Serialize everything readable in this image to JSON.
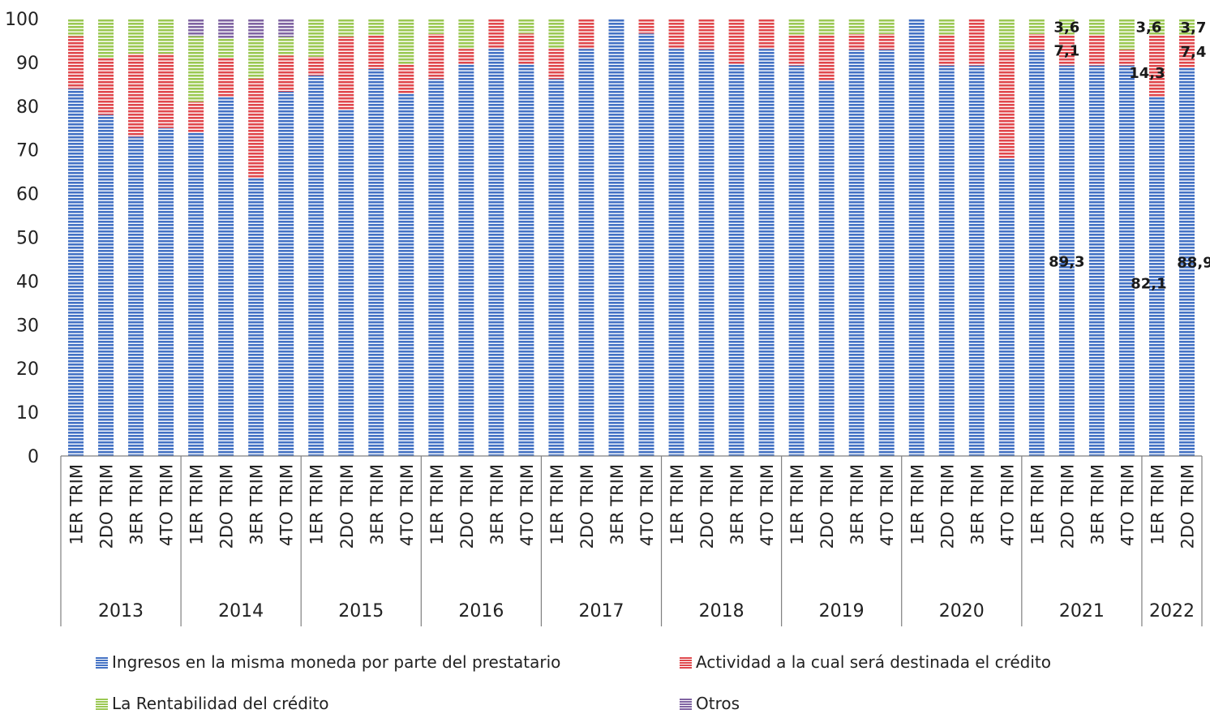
{
  "chart_data": {
    "type": "bar",
    "stacked": true,
    "ylim": [
      0,
      100
    ],
    "yticks": [
      0,
      10,
      20,
      30,
      40,
      50,
      60,
      70,
      80,
      90,
      100
    ],
    "grid": false,
    "legend_position": "bottom",
    "years": [
      {
        "label": "2013",
        "count": 4
      },
      {
        "label": "2014",
        "count": 4
      },
      {
        "label": "2015",
        "count": 4
      },
      {
        "label": "2016",
        "count": 4
      },
      {
        "label": "2017",
        "count": 4
      },
      {
        "label": "2018",
        "count": 4
      },
      {
        "label": "2019",
        "count": 4
      },
      {
        "label": "2020",
        "count": 4
      },
      {
        "label": "2021",
        "count": 4
      },
      {
        "label": "2022",
        "count": 2
      }
    ],
    "categories": [
      "1ER TRIM",
      "2DO TRIM",
      "3ER TRIM",
      "4TO TRIM",
      "1ER TRIM",
      "2DO TRIM",
      "3ER TRIM",
      "4TO TRIM",
      "1ER TRIM",
      "2DO TRIM",
      "3ER TRIM",
      "4TO TRIM",
      "1ER TRIM",
      "2DO TRIM",
      "3ER TRIM",
      "4TO TRIM",
      "1ER TRIM",
      "2DO TRIM",
      "3ER TRIM",
      "4TO TRIM",
      "1ER TRIM",
      "2DO TRIM",
      "3ER TRIM",
      "4TO TRIM",
      "1ER TRIM",
      "2DO TRIM",
      "3ER TRIM",
      "4TO TRIM",
      "1ER TRIM",
      "2DO TRIM",
      "3ER TRIM",
      "4TO TRIM",
      "1ER TRIM",
      "2DO TRIM",
      "3ER TRIM",
      "4TO TRIM",
      "1ER TRIM",
      "2DO TRIM"
    ],
    "series": [
      {
        "name": "Ingresos en la misma moneda por parte del prestatario",
        "color": "#4472C4",
        "values": [
          84.0,
          78.0,
          73.0,
          75.0,
          74.0,
          82.0,
          63.6,
          83.3,
          87.0,
          79.2,
          88.5,
          82.8,
          86.2,
          89.7,
          93.1,
          89.7,
          86.2,
          93.1,
          100.0,
          96.6,
          93.1,
          92.9,
          89.7,
          93.1,
          89.3,
          85.7,
          92.9,
          92.9,
          100.0,
          89.3,
          89.3,
          67.9,
          92.9,
          89.3,
          89.3,
          89.3,
          82.1,
          88.9
        ]
      },
      {
        "name": "Actividad a la cual será destinada el crédito",
        "color": "#E0484D",
        "values": [
          12.0,
          13.0,
          19.0,
          17.0,
          7.0,
          9.0,
          22.7,
          8.3,
          4.3,
          16.7,
          7.7,
          6.9,
          10.3,
          3.4,
          6.9,
          6.9,
          6.9,
          6.9,
          0.0,
          3.4,
          6.9,
          7.1,
          10.3,
          6.9,
          7.1,
          10.7,
          3.6,
          3.6,
          0.0,
          7.1,
          10.7,
          25.0,
          3.6,
          7.1,
          7.1,
          3.6,
          14.3,
          7.4
        ]
      },
      {
        "name": "La Rentabilidad del crédito",
        "color": "#9BC853",
        "values": [
          4.0,
          9.0,
          8.0,
          8.0,
          15.0,
          4.5,
          9.1,
          4.2,
          8.7,
          4.1,
          3.8,
          10.3,
          3.5,
          6.9,
          0.0,
          3.4,
          6.9,
          0.0,
          0.0,
          0.0,
          0.0,
          0.0,
          0.0,
          0.0,
          3.6,
          3.6,
          3.5,
          3.5,
          0.0,
          3.6,
          0.0,
          7.1,
          3.5,
          3.6,
          3.6,
          7.1,
          3.6,
          3.7
        ]
      },
      {
        "name": "Otros",
        "color": "#8064A2",
        "values": [
          0.0,
          0.0,
          0.0,
          0.0,
          4.0,
          4.5,
          4.6,
          4.2,
          0.0,
          0.0,
          0.0,
          0.0,
          0.0,
          0.0,
          0.0,
          0.0,
          0.0,
          0.0,
          0.0,
          0.0,
          0.0,
          0.0,
          0.0,
          0.0,
          0.0,
          0.0,
          0.0,
          0.0,
          0.0,
          0.0,
          0.0,
          0.0,
          0.0,
          0.0,
          0.0,
          0.0,
          0.0,
          0.0
        ]
      }
    ],
    "data_labels": [
      {
        "bar": 33,
        "series": 0,
        "text": "89,3"
      },
      {
        "bar": 33,
        "series": 1,
        "text": "7,1"
      },
      {
        "bar": 33,
        "series": 2,
        "text": "3,6"
      },
      {
        "bar": 36,
        "series": 0,
        "text": "82,1"
      },
      {
        "bar": 36,
        "series": 1,
        "text": "14,3"
      },
      {
        "bar": 36,
        "series": 2,
        "text": "3,6"
      },
      {
        "bar": 37,
        "series": 0,
        "text": "88,9"
      },
      {
        "bar": 37,
        "series": 1,
        "text": "7,4"
      },
      {
        "bar": 37,
        "series": 2,
        "text": "3,7"
      }
    ]
  }
}
